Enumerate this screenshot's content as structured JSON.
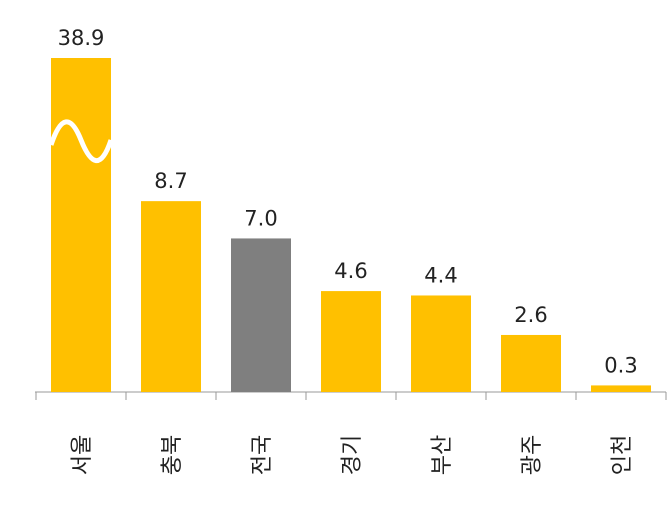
{
  "chart_data": {
    "type": "bar",
    "categories": [
      "서울",
      "충북",
      "전국",
      "경기",
      "부산",
      "광주",
      "인천"
    ],
    "values": [
      38.9,
      8.7,
      7.0,
      4.6,
      4.4,
      2.6,
      0.3
    ],
    "value_labels": [
      "38.9",
      "8.7",
      "7.0",
      "4.6",
      "4.4",
      "2.6",
      "0.3"
    ],
    "colors": [
      "#ffc000",
      "#ffc000",
      "#7f7f7f",
      "#ffc000",
      "#ffc000",
      "#ffc000",
      "#ffc000"
    ],
    "axis_break": true
  }
}
